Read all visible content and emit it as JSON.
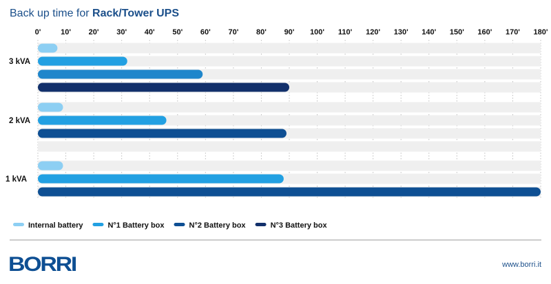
{
  "chart_data": {
    "type": "bar",
    "orientation": "horizontal",
    "title_prefix": "Back up time for ",
    "title_bold": "Rack/Tower UPS",
    "xlim": [
      0,
      180
    ],
    "x_ticks": [
      "0'",
      "10'",
      "20'",
      "30'",
      "40'",
      "50'",
      "60'",
      "70'",
      "80'",
      "90'",
      "100'",
      "110'",
      "120'",
      "130'",
      "140'",
      "150'",
      "160'",
      "170'",
      "180'"
    ],
    "grid": "vertical-dotted",
    "legend_position": "bottom-left",
    "legend": [
      {
        "name": "Internal battery",
        "color": "#8dcff3"
      },
      {
        "name": "N°1 Battery box",
        "color": "#22a0e2"
      },
      {
        "name": "N°2 Battery box",
        "color": "#0e4f93"
      },
      {
        "name": "N°3 Battery box",
        "color": "#12306b"
      }
    ],
    "groups": [
      {
        "label": "3 kVA",
        "bars": [
          {
            "series": "Internal battery",
            "value": 7,
            "color": "#8dcff3"
          },
          {
            "series": "N°1 Battery box",
            "value": 32,
            "color": "#22a0e2"
          },
          {
            "series": "N°2 Battery box",
            "value": 59,
            "color": "#1f86cb"
          },
          {
            "series": "N°3 Battery box",
            "value": 90,
            "color": "#12306b"
          }
        ]
      },
      {
        "label": "2 kVA",
        "bars": [
          {
            "series": "Internal battery",
            "value": 9,
            "color": "#8dcff3"
          },
          {
            "series": "N°1 Battery box",
            "value": 46,
            "color": "#22a0e2"
          },
          {
            "series": "N°2 Battery box",
            "value": 89,
            "color": "#0e4f93"
          },
          {
            "series": "N°3 Battery box",
            "value": null,
            "color": "#12306b"
          }
        ]
      },
      {
        "label": "1 kVA",
        "bars": [
          {
            "series": "Internal battery",
            "value": 9,
            "color": "#8dcff3"
          },
          {
            "series": "N°1 Battery box",
            "value": 88,
            "color": "#22a0e2"
          },
          {
            "series": "N°2 Battery box",
            "value": 180,
            "color": "#0e4f93"
          }
        ]
      }
    ]
  },
  "footer": {
    "logo_text": "BORRI",
    "website": "www.borri.it"
  },
  "colors": {
    "title": "#1b4f8a",
    "track": "#efefef",
    "logo": "#0e4f93"
  }
}
